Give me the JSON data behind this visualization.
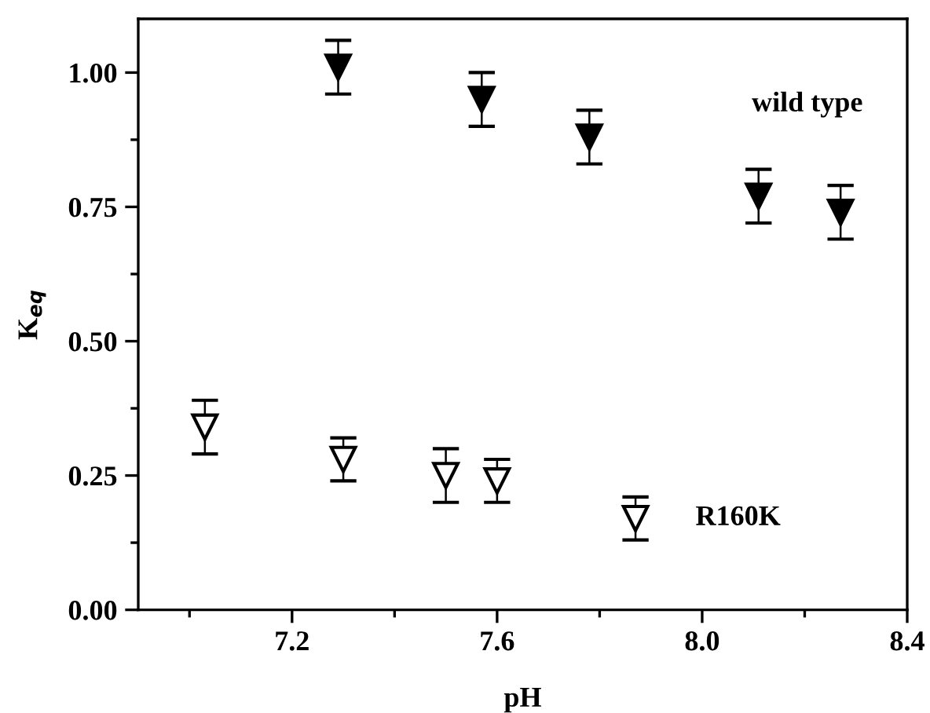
{
  "chart_data": {
    "type": "scatter",
    "xlabel": "pH",
    "ylabel": "K$_{eq}$",
    "xlim": [
      6.9,
      8.4
    ],
    "xticks": [
      7.2,
      7.6,
      {
        "value": 8.0,
        "label": "8.0"
      },
      8.4
    ],
    "ylim": [
      0,
      1.1
    ],
    "yticks": [
      {
        "value": 0,
        "label": "0.00"
      },
      {
        "value": 0.25,
        "label": "0.25"
      },
      {
        "value": 0.5,
        "label": "0.50"
      },
      {
        "value": 0.75,
        "label": "0.75"
      },
      {
        "value": 1.0,
        "label": "1.00"
      }
    ],
    "grid": false,
    "legend": false,
    "marker": "triangle",
    "series": [
      {
        "name": "wild type",
        "color": "#000000",
        "x": [
          7.29,
          7.57,
          7.78,
          8.11,
          8.27
        ],
        "values": [
          1.01,
          0.95,
          0.88,
          0.77,
          0.74
        ],
        "errors": [
          0.05,
          0.05,
          0.05,
          0.05,
          0.05
        ]
      },
      {
        "name": "R160K",
        "color": "#ffffff",
        "x": [
          7.03,
          7.3,
          7.5,
          7.6,
          7.87
        ],
        "values": [
          0.34,
          0.28,
          0.25,
          0.24,
          0.17
        ],
        "errors": [
          0.05,
          0.04,
          0.05,
          0.04,
          0.04
        ]
      }
    ]
  }
}
